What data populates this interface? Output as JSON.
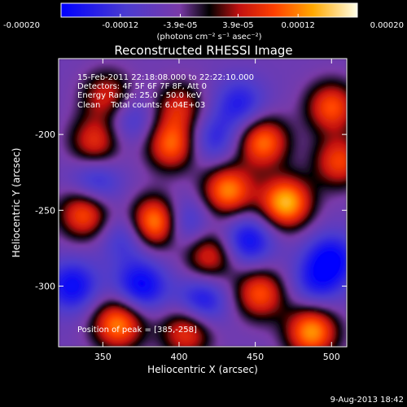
{
  "chart_data": {
    "type": "heatmap",
    "title": "Reconstructed RHESSI Image",
    "xlabel": "Heliocentric X (arcsec)",
    "ylabel": "Heliocentric Y (arcsec)",
    "xlim": [
      321,
      510
    ],
    "ylim": [
      -340,
      -150
    ],
    "xticks": [
      350,
      400,
      450,
      500
    ],
    "yticks": [
      -200,
      -250,
      -300
    ],
    "colorbar": {
      "ticks": [
        -0.0002,
        -0.00012,
        -3.9e-05,
        3.9e-05,
        0.00012,
        0.0002
      ],
      "tick_labels": [
        "-0.00020",
        "-0.00012",
        "-3.9e-05",
        "3.9e-05",
        "0.00012",
        "0.00020"
      ],
      "range": [
        -0.0002,
        0.0002
      ],
      "unit_label": "(photons cm⁻² s⁻¹ asec⁻²)"
    },
    "annotations": [
      "15-Feb-2011 22:18:08.000 to 22:22:10.000",
      "Detectors: 4F 5F 6F 7F 8F, Att 0",
      "Energy Range: 25.0 - 50.0 keV",
      "Clean    Total counts: 6.04E+03"
    ],
    "peak_label": "Position of peak = [385,-258]",
    "timestamp": "9-Aug-2013 18:42",
    "blobs": [
      {
        "x": 385,
        "y": -258,
        "v": 0.0002
      },
      {
        "x": 470,
        "y": -245,
        "v": 0.00019
      },
      {
        "x": 432,
        "y": -237,
        "v": 0.00016
      },
      {
        "x": 455,
        "y": -205,
        "v": 0.00015
      },
      {
        "x": 395,
        "y": -207,
        "v": 0.00014
      },
      {
        "x": 500,
        "y": -182,
        "v": 0.00013
      },
      {
        "x": 487,
        "y": -330,
        "v": 0.00017
      },
      {
        "x": 360,
        "y": -325,
        "v": 0.00016
      },
      {
        "x": 338,
        "y": -252,
        "v": 0.00014
      },
      {
        "x": 345,
        "y": -205,
        "v": 0.00011
      },
      {
        "x": 405,
        "y": -330,
        "v": 0.00012
      },
      {
        "x": 453,
        "y": -305,
        "v": 0.00013
      },
      {
        "x": 420,
        "y": -280,
        "v": 0.00011
      },
      {
        "x": 353,
        "y": -175,
        "v": 0.0001
      },
      {
        "x": 505,
        "y": -218,
        "v": 0.00012
      },
      {
        "x": 400,
        "y": -182,
        "v": 9e-05
      },
      {
        "x": 375,
        "y": -300,
        "v": -0.00016
      },
      {
        "x": 330,
        "y": -300,
        "v": -0.00015
      },
      {
        "x": 415,
        "y": -310,
        "v": -0.00014
      },
      {
        "x": 445,
        "y": -270,
        "v": -0.00015
      },
      {
        "x": 500,
        "y": -282,
        "v": -0.00015
      },
      {
        "x": 402,
        "y": -258,
        "v": -0.00013
      },
      {
        "x": 345,
        "y": -232,
        "v": -0.00012
      },
      {
        "x": 440,
        "y": -180,
        "v": -0.00012
      },
      {
        "x": 365,
        "y": -268,
        "v": -0.0001
      },
      {
        "x": 490,
        "y": -298,
        "v": -0.00011
      },
      {
        "x": 368,
        "y": -190,
        "v": -0.0001
      },
      {
        "x": 422,
        "y": -203,
        "v": -0.00011
      }
    ]
  }
}
